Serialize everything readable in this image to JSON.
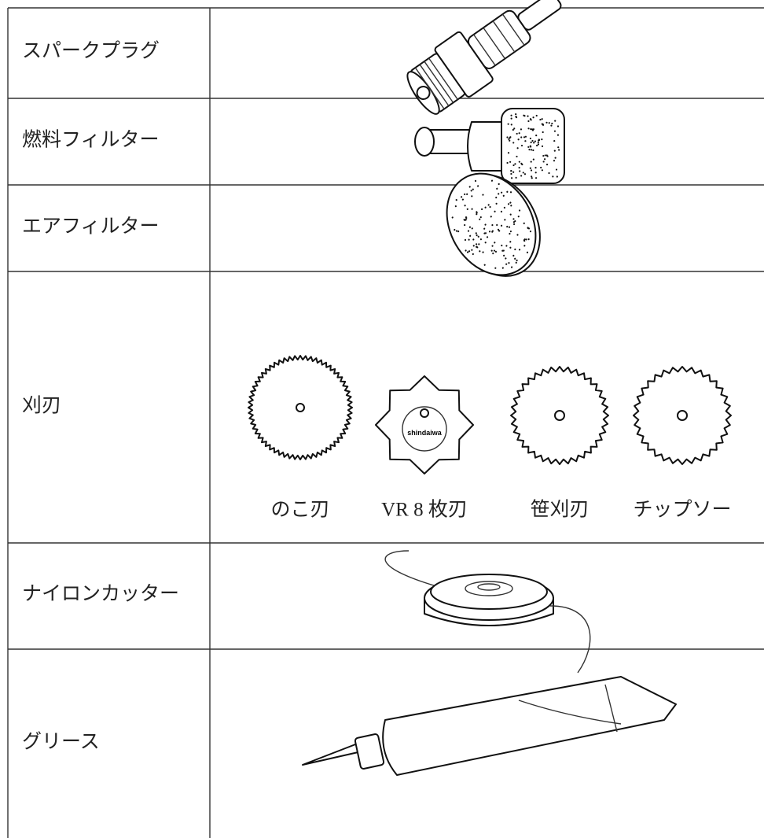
{
  "table": {
    "rows": [
      {
        "label": "スパークプラグ"
      },
      {
        "label": "燃料フィルター"
      },
      {
        "label": "エアフィルター"
      },
      {
        "label": "刈刃",
        "items": [
          {
            "caption": "のこ刃"
          },
          {
            "caption": "VR 8 枚刃",
            "brand": "shindaiwa"
          },
          {
            "caption": "笹刈刃"
          },
          {
            "caption": "チップソー"
          }
        ]
      },
      {
        "label": "ナイロンカッター"
      },
      {
        "label": "グリース"
      }
    ]
  }
}
